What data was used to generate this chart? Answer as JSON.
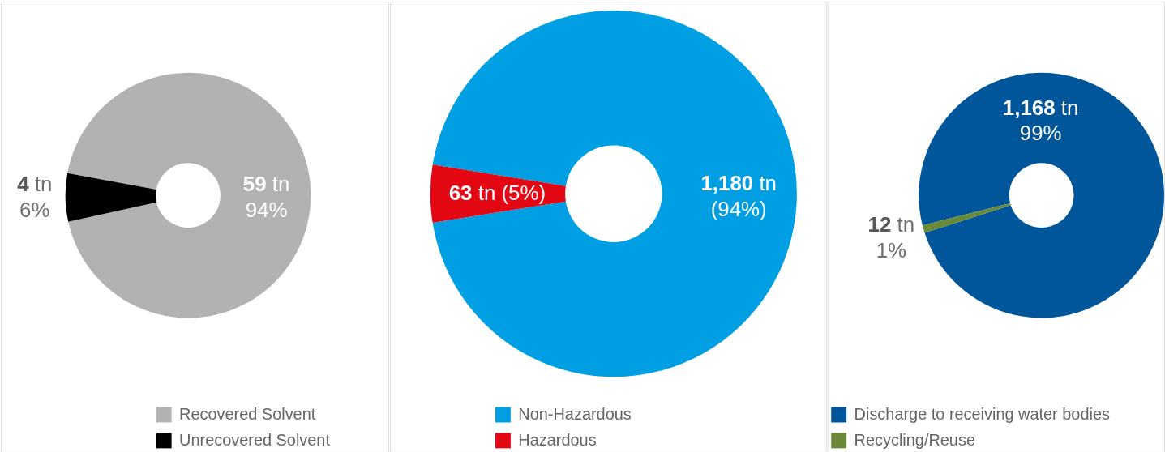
{
  "chart_data": [
    {
      "type": "donut",
      "categories": [
        "Recovered Solvent",
        "Unrecovered Solvent"
      ],
      "values": [
        59,
        4
      ],
      "colors": [
        "#b2b2b2",
        "#000000"
      ],
      "value_labels": [
        "59 tn\n94%",
        "4 tn\n6%"
      ],
      "legend": "bottom"
    },
    {
      "type": "donut",
      "categories": [
        "Non-Hazardous",
        "Hazardous"
      ],
      "values": [
        1180,
        63
      ],
      "colors": [
        "#009fe3",
        "#e30613"
      ],
      "value_labels": [
        "1,180 tn\n(94%)",
        "63 tn (5%)"
      ],
      "legend": "bottom"
    },
    {
      "type": "donut",
      "categories": [
        "Discharge to receiving water bodies",
        "Recycling/Reuse"
      ],
      "values": [
        1168,
        12
      ],
      "colors": [
        "#00569b",
        "#6a8a3a"
      ],
      "value_labels": [
        "1,168 tn\n99%",
        "12 tn\n1%"
      ],
      "legend": "bottom"
    }
  ]
}
